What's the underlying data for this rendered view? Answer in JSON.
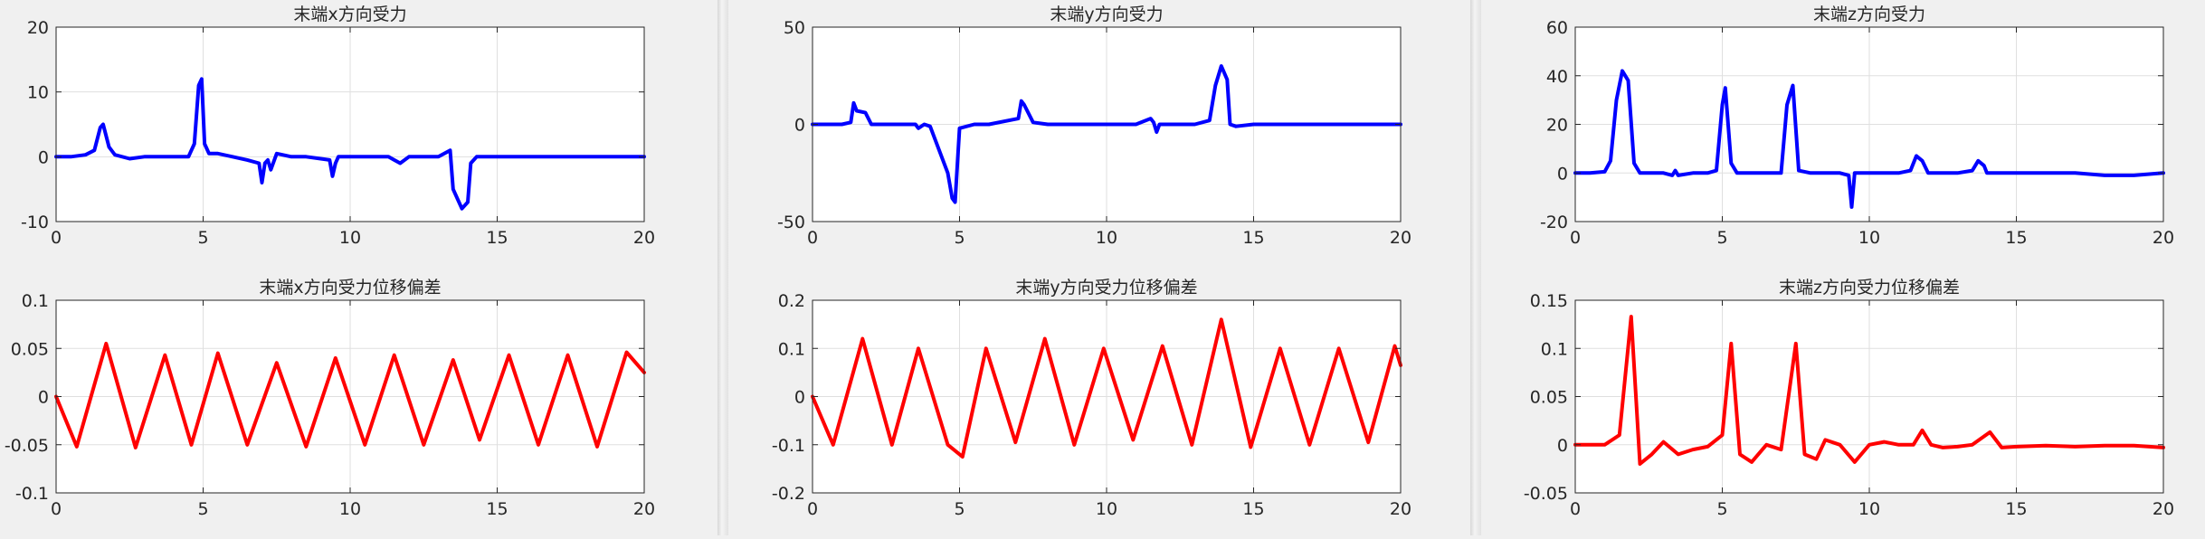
{
  "figures": [
    {
      "top": {
        "title": "末端x方向受力",
        "color": "#0000ff",
        "xlim": [
          0,
          20
        ],
        "ylim": [
          -10,
          20
        ],
        "xticks": [
          0,
          5,
          10,
          15,
          20
        ],
        "yticks": [
          -10,
          0,
          10,
          20
        ],
        "ytick_labels": [
          "-10",
          "0",
          "10",
          "20"
        ]
      },
      "bottom": {
        "title": "末端x方向受力位移偏差",
        "color": "#ff0000",
        "xlim": [
          0,
          20
        ],
        "ylim": [
          -0.1,
          0.1
        ],
        "xticks": [
          0,
          5,
          10,
          15,
          20
        ],
        "yticks": [
          -0.1,
          -0.05,
          0,
          0.05,
          0.1
        ],
        "ytick_labels": [
          "-0.1",
          "-0.05",
          "0",
          "0.05",
          "0.1"
        ]
      }
    },
    {
      "top": {
        "title": "末端y方向受力",
        "color": "#0000ff",
        "xlim": [
          0,
          20
        ],
        "ylim": [
          -50,
          50
        ],
        "xticks": [
          0,
          5,
          10,
          15,
          20
        ],
        "yticks": [
          -50,
          0,
          50
        ],
        "ytick_labels": [
          "-50",
          "0",
          "50"
        ]
      },
      "bottom": {
        "title": "末端y方向受力位移偏差",
        "color": "#ff0000",
        "xlim": [
          0,
          20
        ],
        "ylim": [
          -0.2,
          0.2
        ],
        "xticks": [
          0,
          5,
          10,
          15,
          20
        ],
        "yticks": [
          -0.2,
          -0.1,
          0,
          0.1,
          0.2
        ],
        "ytick_labels": [
          "-0.2",
          "-0.1",
          "0",
          "0.1",
          "0.2"
        ]
      }
    },
    {
      "top": {
        "title": "末端z方向受力",
        "color": "#0000ff",
        "xlim": [
          0,
          20
        ],
        "ylim": [
          -20,
          60
        ],
        "xticks": [
          0,
          5,
          10,
          15,
          20
        ],
        "yticks": [
          -20,
          0,
          20,
          40,
          60
        ],
        "ytick_labels": [
          "-20",
          "0",
          "20",
          "40",
          "60"
        ]
      },
      "bottom": {
        "title": "末端z方向受力位移偏差",
        "color": "#ff0000",
        "xlim": [
          0,
          20
        ],
        "ylim": [
          -0.05,
          0.15
        ],
        "xticks": [
          0,
          5,
          10,
          15,
          20
        ],
        "yticks": [
          -0.05,
          0,
          0.05,
          0.1,
          0.15
        ],
        "ytick_labels": [
          "-0.05",
          "0",
          "0.05",
          "0.1",
          "0.15"
        ]
      }
    }
  ],
  "chart_data": [
    {
      "type": "line",
      "title": "末端x方向受力",
      "xlim": [
        0,
        20
      ],
      "ylim": [
        -10,
        20
      ],
      "grid": true,
      "series": [
        {
          "color": "#0000ff",
          "x": [
            0,
            0.5,
            1,
            1.3,
            1.5,
            1.6,
            1.8,
            2,
            2.5,
            3,
            3.5,
            4,
            4.5,
            4.7,
            4.85,
            4.95,
            5.05,
            5.2,
            5.5,
            6,
            6.5,
            6.9,
            7,
            7.1,
            7.2,
            7.3,
            7.5,
            8,
            8.5,
            9,
            9.3,
            9.4,
            9.5,
            9.6,
            10,
            10.5,
            11,
            11.3,
            11.5,
            11.7,
            12,
            12.5,
            13,
            13.4,
            13.5,
            13.6,
            13.8,
            14,
            14.1,
            14.3,
            15,
            15.5,
            16,
            16.5,
            17,
            17.5,
            18,
            18.5,
            19,
            19.5,
            20
          ],
          "y": [
            0,
            0,
            0.3,
            1,
            4.5,
            5,
            1.5,
            0.3,
            -0.3,
            0,
            0,
            0,
            0,
            2,
            11,
            12,
            2,
            0.5,
            0.5,
            0,
            -0.5,
            -1,
            -4,
            -1,
            -0.5,
            -2,
            0.5,
            0,
            0,
            -0.3,
            -0.5,
            -3,
            -1,
            0,
            0,
            0,
            0,
            0,
            -0.5,
            -1,
            0,
            0,
            0,
            1,
            -5,
            -6,
            -8,
            -7,
            -1,
            0,
            0,
            0,
            0,
            0,
            0,
            0,
            0,
            0,
            0,
            0,
            0
          ]
        }
      ]
    },
    {
      "type": "line",
      "title": "末端y方向受力",
      "xlim": [
        0,
        20
      ],
      "ylim": [
        -50,
        50
      ],
      "grid": true,
      "series": [
        {
          "color": "#0000ff",
          "x": [
            0,
            0.5,
            1,
            1.3,
            1.4,
            1.5,
            1.8,
            2,
            3,
            3.5,
            3.6,
            3.8,
            4,
            4.6,
            4.75,
            4.85,
            5,
            5.5,
            6,
            7,
            7.1,
            7.2,
            7.5,
            8,
            9,
            10,
            11,
            11.5,
            11.6,
            11.7,
            11.8,
            12,
            13,
            13.5,
            13.7,
            13.9,
            14.1,
            14.2,
            14.4,
            15,
            16,
            17,
            18,
            19,
            20
          ],
          "y": [
            0,
            0,
            0,
            1,
            11,
            7,
            6,
            0,
            0,
            0,
            -2,
            0,
            -1,
            -25,
            -38,
            -40,
            -2,
            0,
            0,
            3,
            12,
            10,
            1,
            0,
            0,
            0,
            0,
            3,
            1,
            -4,
            0,
            0,
            0,
            2,
            20,
            30,
            23,
            0,
            -1,
            0,
            0,
            0,
            0,
            0,
            0
          ]
        }
      ]
    },
    {
      "type": "line",
      "title": "末端z方向受力",
      "xlim": [
        0,
        20
      ],
      "ylim": [
        -20,
        60
      ],
      "grid": true,
      "series": [
        {
          "color": "#0000ff",
          "x": [
            0,
            0.5,
            1,
            1.2,
            1.4,
            1.6,
            1.8,
            2,
            2.2,
            2.5,
            3,
            3.3,
            3.4,
            3.5,
            4,
            4.5,
            4.8,
            5,
            5.1,
            5.3,
            5.5,
            6,
            6.5,
            7,
            7.2,
            7.4,
            7.6,
            8,
            9,
            9.3,
            9.4,
            9.5,
            10,
            11,
            11.4,
            11.6,
            11.8,
            12,
            13,
            13.5,
            13.7,
            13.9,
            14,
            15,
            16,
            17,
            18,
            19,
            20
          ],
          "y": [
            0,
            0,
            0.5,
            5,
            30,
            42,
            38,
            4,
            0,
            0,
            0,
            -1,
            1,
            -1,
            0,
            0,
            1,
            28,
            35,
            4,
            0,
            0,
            0,
            0,
            28,
            36,
            1,
            0,
            0,
            -1,
            -14,
            0,
            0,
            0,
            1,
            7,
            5,
            0,
            0,
            1,
            5,
            3,
            0,
            0,
            0,
            0,
            -1,
            -1,
            0
          ]
        }
      ]
    },
    {
      "type": "line",
      "title": "末端x方向受力位移偏差",
      "xlim": [
        0,
        20
      ],
      "ylim": [
        -0.1,
        0.1
      ],
      "grid": true,
      "series": [
        {
          "color": "#ff0000",
          "x": [
            0,
            0.7,
            1.7,
            2.7,
            3.7,
            4.6,
            5.5,
            6.5,
            7.5,
            8.5,
            9.5,
            10.5,
            11.5,
            12.5,
            13.5,
            14.4,
            15.4,
            16.4,
            17.4,
            18.4,
            19.4,
            20
          ],
          "y": [
            0,
            -0.052,
            0.055,
            -0.053,
            0.043,
            -0.05,
            0.045,
            -0.05,
            0.035,
            -0.052,
            0.04,
            -0.05,
            0.043,
            -0.05,
            0.038,
            -0.045,
            0.043,
            -0.05,
            0.043,
            -0.052,
            0.046,
            0.025
          ]
        }
      ]
    },
    {
      "type": "line",
      "title": "末端y方向受力位移偏差",
      "xlim": [
        0,
        20
      ],
      "ylim": [
        -0.2,
        0.2
      ],
      "grid": true,
      "series": [
        {
          "color": "#ff0000",
          "x": [
            0,
            0.7,
            1.7,
            2.7,
            3.6,
            4.6,
            5.1,
            5.9,
            6.9,
            7.9,
            8.9,
            9.9,
            10.9,
            11.9,
            12.9,
            13.9,
            14.9,
            15.9,
            16.9,
            17.9,
            18.9,
            19.8,
            20
          ],
          "y": [
            0,
            -0.1,
            0.12,
            -0.1,
            0.1,
            -0.1,
            -0.125,
            0.1,
            -0.095,
            0.12,
            -0.1,
            0.1,
            -0.09,
            0.105,
            -0.1,
            0.16,
            -0.105,
            0.1,
            -0.1,
            0.1,
            -0.095,
            0.105,
            0.065
          ]
        }
      ]
    },
    {
      "type": "line",
      "title": "末端z方向受力位移偏差",
      "xlim": [
        0,
        20
      ],
      "ylim": [
        -0.05,
        0.15
      ],
      "grid": true,
      "series": [
        {
          "color": "#ff0000",
          "x": [
            0,
            1,
            1.5,
            1.9,
            2.2,
            2.6,
            3,
            3.5,
            4,
            4.5,
            5,
            5.3,
            5.6,
            6,
            6.5,
            7,
            7.5,
            7.8,
            8.2,
            8.5,
            9,
            9.5,
            10,
            10.5,
            11,
            11.5,
            11.8,
            12.1,
            12.5,
            13,
            13.5,
            14.1,
            14.5,
            15,
            16,
            17,
            18,
            19,
            20
          ],
          "y": [
            0,
            0,
            0.01,
            0.133,
            -0.02,
            -0.01,
            0.003,
            -0.01,
            -0.005,
            -0.002,
            0.01,
            0.105,
            -0.01,
            -0.018,
            0,
            -0.005,
            0.105,
            -0.01,
            -0.015,
            0.005,
            0,
            -0.018,
            0,
            0.003,
            0,
            0,
            0.015,
            0,
            -0.003,
            -0.002,
            0,
            0.013,
            -0.003,
            -0.002,
            -0.001,
            -0.002,
            -0.001,
            -0.001,
            -0.003
          ]
        }
      ]
    }
  ]
}
